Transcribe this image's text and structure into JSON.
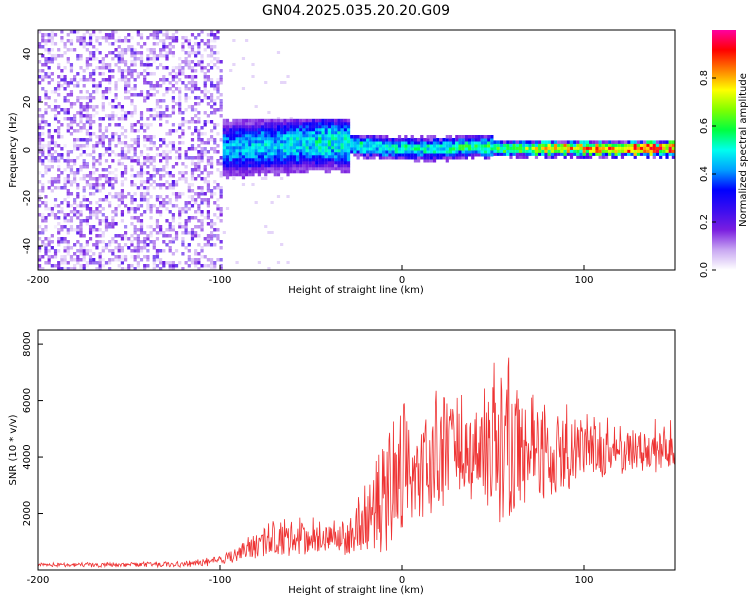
{
  "chart_data": [
    {
      "type": "heatmap",
      "title": "GN04.2025.035.20.20.G09",
      "xlabel": "Height of straight line (km)",
      "ylabel": "Frequency (Hz)",
      "xlim": [
        -200,
        150
      ],
      "ylim": [
        -50,
        50
      ],
      "xticks": [
        -200,
        -100,
        0,
        100
      ],
      "yticks": [
        -40,
        -20,
        0,
        20,
        40
      ],
      "grid": false,
      "colorbar": {
        "label": "Normalized spectral amplitude",
        "range": [
          0,
          1
        ],
        "ticks": [
          0.0,
          0.2,
          0.4,
          0.6,
          0.8
        ],
        "colors": [
          "#ffffff",
          "#c9a8f2",
          "#7a1ee0",
          "#3a0df0",
          "#0000ff",
          "#00a0ff",
          "#00ffee",
          "#00ff40",
          "#80ff00",
          "#ffff00",
          "#ff8000",
          "#ff0000",
          "#ff00a0"
        ]
      },
      "regions": [
        {
          "x": [
            -200,
            -100
          ],
          "freq": [
            -50,
            50
          ],
          "amplitude": [
            0.05,
            0.25
          ],
          "description_pattern": "broadband noise"
        },
        {
          "x": [
            -100,
            -80
          ],
          "freq": [
            -8,
            8
          ],
          "amplitude": [
            0.2,
            0.55
          ]
        },
        {
          "x": [
            -80,
            -30
          ],
          "freq": [
            -10,
            12
          ],
          "amplitude": [
            0.2,
            0.5
          ]
        },
        {
          "x": [
            -30,
            50
          ],
          "freq": [
            -4,
            4
          ],
          "amplitude": [
            0.25,
            0.6
          ]
        },
        {
          "x": [
            50,
            150
          ],
          "freq": [
            -3,
            3
          ],
          "amplitude": [
            0.3,
            0.95
          ]
        }
      ],
      "ridge": {
        "x": [
          -100,
          -80,
          -60,
          -40,
          -20,
          0,
          20,
          40,
          60,
          80,
          100,
          120,
          150
        ],
        "freq": [
          0,
          1,
          2,
          3,
          1,
          0,
          0,
          1,
          0,
          0,
          0,
          0,
          0
        ],
        "peak_amplitude": [
          0.45,
          0.5,
          0.5,
          0.55,
          0.55,
          0.55,
          0.55,
          0.6,
          0.65,
          0.8,
          0.85,
          0.9,
          0.92
        ]
      }
    },
    {
      "type": "line",
      "xlabel": "Height of straight line (km)",
      "ylabel": "SNR (10 * v/v)",
      "xlim": [
        -200,
        150
      ],
      "ylim": [
        0,
        8500
      ],
      "xticks": [
        -200,
        -100,
        0,
        100
      ],
      "yticks": [
        2000,
        4000,
        6000,
        8000
      ],
      "grid": false,
      "series": [
        {
          "color": "#ee3333",
          "envelope": {
            "x": [
              -200,
              -120,
              -100,
              -90,
              -80,
              -60,
              -40,
              -30,
              -20,
              -10,
              0,
              10,
              20,
              30,
              40,
              50,
              55,
              60,
              70,
              80,
              100,
              120,
              150
            ],
            "lower": [
              100,
              100,
              150,
              300,
              400,
              500,
              600,
              500,
              700,
              500,
              1500,
              1800,
              2000,
              2500,
              2500,
              2000,
              1500,
              2000,
              2500,
              2500,
              3000,
              3200,
              3300
            ],
            "upper": [
              250,
              300,
              500,
              900,
              1500,
              2000,
              1800,
              1900,
              3200,
              4500,
              6000,
              5200,
              6800,
              6700,
              6300,
              7500,
              8500,
              7500,
              6500,
              6200,
              5800,
              5500,
              5300
            ],
            "mean": [
              180,
              200,
              300,
              600,
              900,
              1200,
              1100,
              1200,
              1800,
              2500,
              3300,
              3500,
              4000,
              4300,
              4300,
              4700,
              5000,
              4600,
              4500,
              4300,
              4200,
              4200,
              4200
            ]
          }
        }
      ]
    }
  ]
}
